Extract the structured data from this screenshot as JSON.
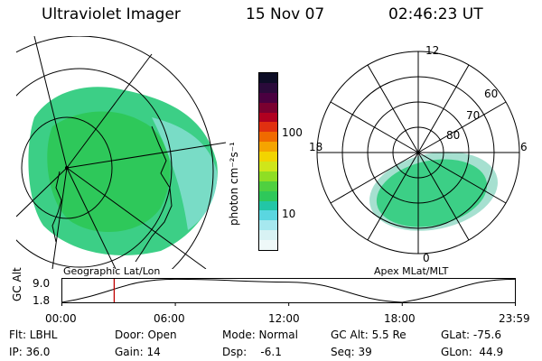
{
  "header": {
    "instrument": "Ultraviolet Imager",
    "date": "15 Nov 07",
    "time": "02:46:23 UT"
  },
  "colorbar": {
    "label": "photon cm⁻²s⁻¹",
    "ticks": [
      "100",
      "10"
    ],
    "scale": "log",
    "colors": [
      "#0d0d26",
      "#2a0a3a",
      "#4a0040",
      "#7a0030",
      "#b00020",
      "#e03010",
      "#f06a00",
      "#f5a400",
      "#f2d400",
      "#cfe61a",
      "#8fde24",
      "#4fd040",
      "#2ec85a",
      "#22c6a6",
      "#5ad6e0",
      "#a6e8ef",
      "#d8f2f4",
      "#eef8f8"
    ]
  },
  "geo_panel": {
    "caption": "Geographic Lat/Lon"
  },
  "polar_panel": {
    "caption": "Apex  MLat/MLT",
    "mlt_labels": {
      "top": "12",
      "right": "6",
      "bottom": "0",
      "left": "18"
    },
    "lat_labels": [
      "60",
      "70",
      "80"
    ]
  },
  "altitude_plot": {
    "ylabel": "GC Alt",
    "yticks": [
      "9.0",
      "1.8"
    ],
    "xticks": [
      "00:00",
      "06:00",
      "12:00",
      "18:00",
      "23:59"
    ],
    "current_time_marker": "02:46"
  },
  "info": {
    "flt": "Flt: LBHL",
    "ip": "IP: 36.0",
    "door": "Door: Open",
    "gain": "Gain: 14",
    "mode": "Mode: Normal",
    "dsp": "Dsp:    -6.1",
    "gcalt": "GC Alt: 5.5 Re",
    "seq": "Seq: 39",
    "glat": "GLat: -75.6",
    "glon": "GLon:  44.9"
  },
  "chart_data": {
    "type": "line",
    "title": "",
    "xlabel": "",
    "ylabel": "GC Alt",
    "x": [
      "00:00",
      "06:00",
      "12:00",
      "18:00",
      "23:59"
    ],
    "series": [
      {
        "values": [
          1.8,
          8.9,
          8.0,
          1.8,
          8.9
        ]
      }
    ],
    "ylim": [
      1.8,
      9.0
    ]
  }
}
